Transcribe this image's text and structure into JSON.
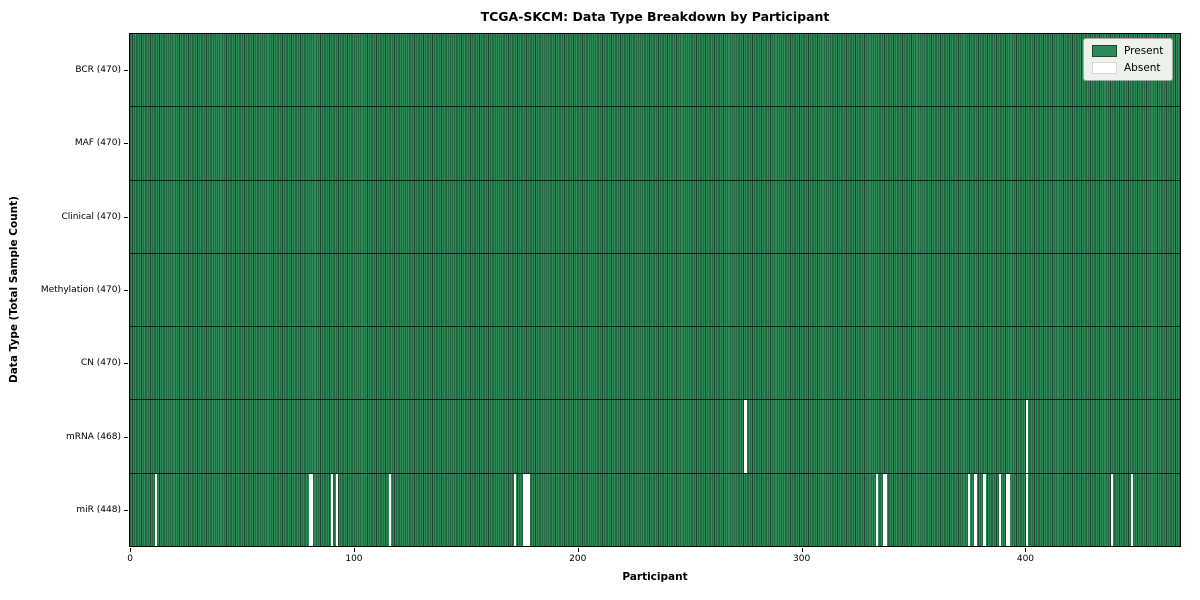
{
  "chart_data": {
    "type": "heatmap",
    "title": "TCGA-SKCM: Data Type Breakdown by Participant",
    "xlabel": "Participant",
    "ylabel": "Data Type (Total Sample Count)",
    "x_ticks": [
      0,
      100,
      200,
      300,
      400
    ],
    "participants_total": 470,
    "xlim": [
      -0.5,
      469.5
    ],
    "grid": "row-separators-only",
    "legend": {
      "position": "upper-right",
      "entries": [
        {
          "label": "Present",
          "color": "#2e8b57"
        },
        {
          "label": "Absent",
          "color": "#ffffff"
        }
      ]
    },
    "rows": [
      {
        "label": "BCR",
        "display": "BCR (470)",
        "present_count": 470,
        "absent_participants": []
      },
      {
        "label": "MAF",
        "display": "MAF (470)",
        "present_count": 470,
        "absent_participants": []
      },
      {
        "label": "Clinical",
        "display": "Clinical (470)",
        "present_count": 470,
        "absent_participants": []
      },
      {
        "label": "Methylation",
        "display": "Methylation (470)",
        "present_count": 470,
        "absent_participants": []
      },
      {
        "label": "CN",
        "display": "CN (470)",
        "present_count": 470,
        "absent_participants": []
      },
      {
        "label": "mRNA",
        "display": "mRNA (468)",
        "present_count": 468,
        "absent_participants": [
          275,
          401
        ]
      },
      {
        "label": "miR",
        "display": "miR (448)",
        "present_count": 448,
        "absent_participants": [
          11,
          80,
          81,
          90,
          92,
          116,
          172,
          176,
          177,
          178,
          334,
          337,
          338,
          375,
          378,
          382,
          389,
          392,
          393,
          401,
          439,
          448
        ]
      }
    ],
    "colors": {
      "present": "#2e8b57",
      "absent": "#ffffff",
      "cell_edge": "#1b4730",
      "row_separator": "#0d1f14",
      "plot_border": "#000000",
      "legend_background": "#edf2ed"
    }
  }
}
